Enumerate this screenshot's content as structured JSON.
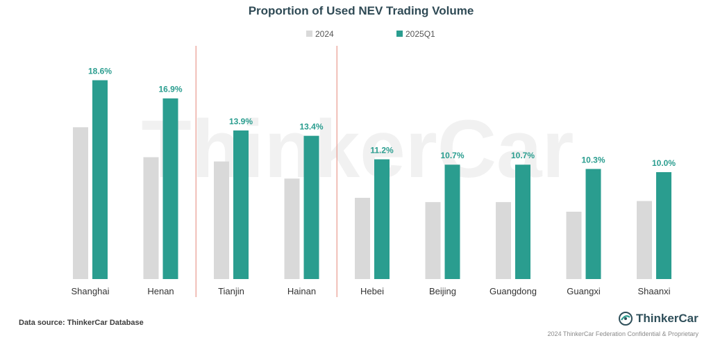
{
  "chart_data": {
    "type": "bar",
    "title": "Proportion of Used NEV Trading Volume",
    "categories": [
      "Shanghai",
      "Henan",
      "Tianjin",
      "Hainan",
      "Hebei",
      "Beijing",
      "Guangdong",
      "Guangxi",
      "Shaanxi"
    ],
    "series": [
      {
        "name": "2024",
        "values": [
          14.2,
          11.4,
          11.0,
          9.4,
          7.6,
          7.2,
          7.2,
          6.3,
          7.3
        ],
        "color": "#d9d9d9"
      },
      {
        "name": "2025Q1",
        "values": [
          18.6,
          16.9,
          13.9,
          13.4,
          11.2,
          10.7,
          10.7,
          10.3,
          10.0
        ],
        "color": "#2a9d8f"
      }
    ],
    "data_labels": [
      "18.6%",
      "16.9%",
      "13.9%",
      "13.4%",
      "11.2%",
      "10.7%",
      "10.7%",
      "10.3%",
      "10.0%"
    ],
    "ylim": [
      0,
      20
    ],
    "grid": false,
    "legend_position": "top",
    "divider_color": "#e8998d",
    "watermark": "ThinkerCar"
  },
  "footer": {
    "source": "Data source: ThinkerCar Database",
    "logo": "ThinkerCar",
    "copyright": "2024 ThinkerCar Federation Confidential & Proprietary"
  }
}
